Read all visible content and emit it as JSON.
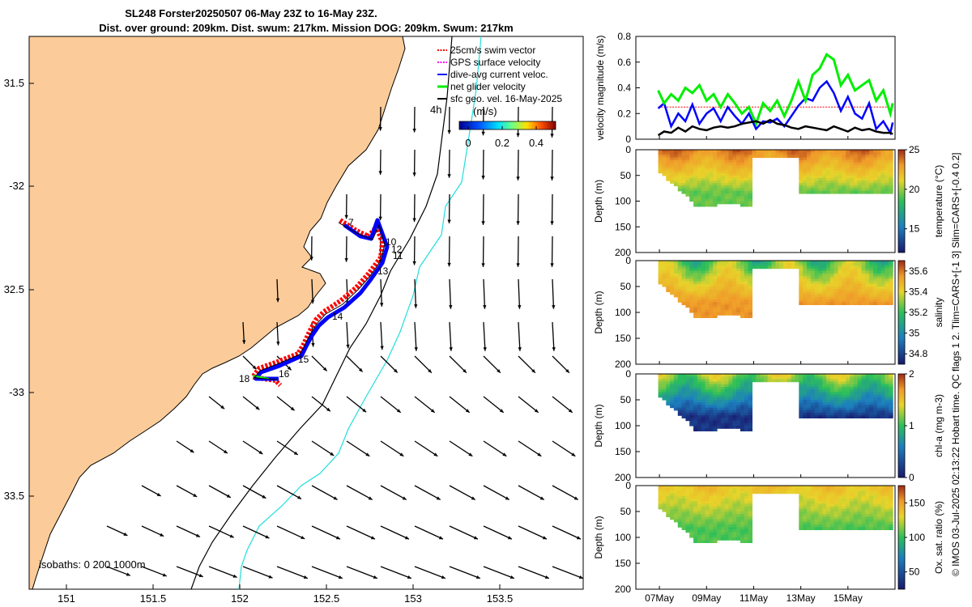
{
  "title": {
    "line1": "SL248 Forster20250507 06-May 23Z to 16-May 23Z.",
    "line2": "Dist. over ground: 209km. Dist. swum: 217km. Mission DOG: 209km. Swum: 217km"
  },
  "side_note": "© IMOS 03-Jul-2025 02:13:22 Hobart time. QC flags 1  2. Tlim=CARS+[-1 3] Slim=CARS+[-0.4 0.2]",
  "colors": {
    "land": "#fbcc9a",
    "swim": "#ff0000",
    "gps": "#ff00ff",
    "dive": "#0000ff",
    "net": "#00ee00",
    "sfc": "#000000",
    "isobath200": "#000000",
    "isobath1000": "#22dddd"
  },
  "map": {
    "legend": [
      "25cm/s swim vector",
      "GPS surface velocity",
      "dive-avg current veloc.",
      "net glider velocity",
      "sfc geo. vel. 16-May-2025"
    ],
    "isobaths_label": "isobaths: 0  200  1000m",
    "time_label": "4h",
    "colorbar_unit": "(m/s)",
    "colorbar_ticks": [
      "0",
      "0.2",
      "0.4"
    ],
    "lon_ticks": [
      "151",
      "151.5",
      "152",
      "152.5",
      "153",
      "153.5"
    ],
    "lat_ticks": [
      "31.5",
      "-32",
      "32.5",
      "-33",
      "33.5"
    ],
    "day_labels": [
      "7",
      "10",
      "12",
      "11",
      "13",
      "14",
      "15",
      "16",
      "18"
    ]
  },
  "chart_data": [
    {
      "type": "line",
      "ylabel": "velocity magnitude (m/s)",
      "ylim": [
        0,
        0.8
      ],
      "yticks": [
        "0",
        "0.2",
        "0.4",
        "0.6",
        "0.8"
      ],
      "x": [
        6.95,
        7.2,
        7.5,
        7.8,
        8.1,
        8.4,
        8.7,
        9.0,
        9.3,
        9.6,
        9.9,
        10.2,
        10.5,
        10.8,
        11.1,
        11.4,
        11.7,
        12.0,
        12.3,
        12.6,
        12.9,
        13.2,
        13.5,
        13.8,
        14.1,
        14.4,
        14.7,
        15.0,
        15.3,
        15.6,
        15.9,
        16.2,
        16.5,
        16.8,
        16.9
      ],
      "series": [
        {
          "name": "25cm/s swim vector",
          "values": [
            0.25,
            0.25,
            0.25,
            0.25,
            0.25,
            0.25,
            0.25,
            0.25,
            0.25,
            0.25,
            0.25,
            0.25,
            0.25,
            0.25,
            0.25,
            0.25,
            0.25,
            0.25,
            0.25,
            0.25,
            0.25,
            0.25,
            0.25,
            0.25,
            0.25,
            0.25,
            0.25,
            0.25,
            0.25,
            0.25,
            0.25,
            0.25,
            0.25,
            0.25,
            0.25
          ]
        },
        {
          "name": "dive-avg current veloc.",
          "values": [
            0.24,
            0.28,
            0.1,
            0.2,
            0.14,
            0.27,
            0.12,
            0.2,
            0.24,
            0.14,
            0.25,
            0.18,
            0.12,
            0.2,
            0.08,
            0.14,
            0.13,
            0.16,
            0.1,
            0.18,
            0.26,
            0.32,
            0.3,
            0.4,
            0.45,
            0.36,
            0.22,
            0.33,
            0.2,
            0.16,
            0.28,
            0.08,
            0.14,
            0.05,
            0.13
          ]
        },
        {
          "name": "net glider velocity",
          "values": [
            0.38,
            0.28,
            0.35,
            0.3,
            0.4,
            0.36,
            0.42,
            0.3,
            0.35,
            0.25,
            0.35,
            0.28,
            0.2,
            0.25,
            0.12,
            0.28,
            0.22,
            0.3,
            0.18,
            0.3,
            0.45,
            0.3,
            0.5,
            0.55,
            0.66,
            0.62,
            0.42,
            0.5,
            0.38,
            0.42,
            0.46,
            0.3,
            0.38,
            0.2,
            0.28
          ]
        },
        {
          "name": "sfc geo. vel. 16-May-2025",
          "values": [
            0.03,
            0.06,
            0.05,
            0.09,
            0.06,
            0.1,
            0.08,
            0.07,
            0.09,
            0.1,
            0.09,
            0.1,
            0.12,
            0.13,
            0.14,
            0.12,
            0.15,
            0.12,
            0.11,
            0.09,
            0.08,
            0.1,
            0.09,
            0.08,
            0.07,
            0.1,
            0.08,
            0.06,
            0.09,
            0.07,
            0.08,
            0.06,
            0.05,
            0.05,
            0.04
          ]
        }
      ]
    },
    {
      "type": "heatmap",
      "variable": "temperature",
      "colorbar_label": "temperature (°C)",
      "colorbar_ticks": [
        "15",
        "20",
        "25"
      ],
      "clim": [
        12,
        25
      ],
      "ylabel": "Depth (m)",
      "ylim": [
        0,
        200
      ],
      "yticks": [
        "0",
        "50",
        "100",
        "150",
        "200"
      ],
      "surface_range": [
        22,
        24
      ],
      "deep_value": 18
    },
    {
      "type": "heatmap",
      "variable": "salinity",
      "colorbar_label": "salinity",
      "colorbar_ticks": [
        "34.8",
        "35",
        "35.2",
        "35.4",
        "35.6"
      ],
      "clim": [
        34.7,
        35.7
      ],
      "ylabel": "Depth (m)",
      "ylim": [
        0,
        200
      ],
      "yticks": [
        "0",
        "50",
        "100",
        "150",
        "200"
      ],
      "surface_range": [
        35.0,
        35.3
      ],
      "deep_value": 35.5
    },
    {
      "type": "heatmap",
      "variable": "chl-a",
      "colorbar_label": "chl-a (mg m-3)",
      "colorbar_ticks": [
        "0",
        "1",
        "2"
      ],
      "clim": [
        0,
        2
      ],
      "ylabel": "Depth (m)",
      "ylim": [
        0,
        200
      ],
      "yticks": [
        "0",
        "50",
        "100",
        "150",
        "200"
      ],
      "surface_range": [
        0.8,
        1.3
      ],
      "deep_value": 0.1
    },
    {
      "type": "heatmap",
      "variable": "Ox. sat. ratio",
      "colorbar_label": "Ox. sat. ratio (%)",
      "colorbar_ticks": [
        "50",
        "100",
        "150"
      ],
      "clim": [
        25,
        175
      ],
      "ylabel": "Depth (m)",
      "ylim": [
        0,
        200
      ],
      "yticks": [
        "0",
        "50",
        "100",
        "150",
        "200"
      ],
      "surface_range": [
        118,
        132
      ],
      "deep_value": 90
    }
  ],
  "time_axis": {
    "ticks": [
      "07May",
      "09May",
      "11May",
      "13May",
      "15May"
    ],
    "tick_days": [
      7,
      9,
      11,
      13,
      15
    ],
    "range": [
      6,
      17
    ],
    "data_start": 6.95,
    "data_end": 16.9,
    "gap": [
      11.0,
      13.0
    ]
  }
}
